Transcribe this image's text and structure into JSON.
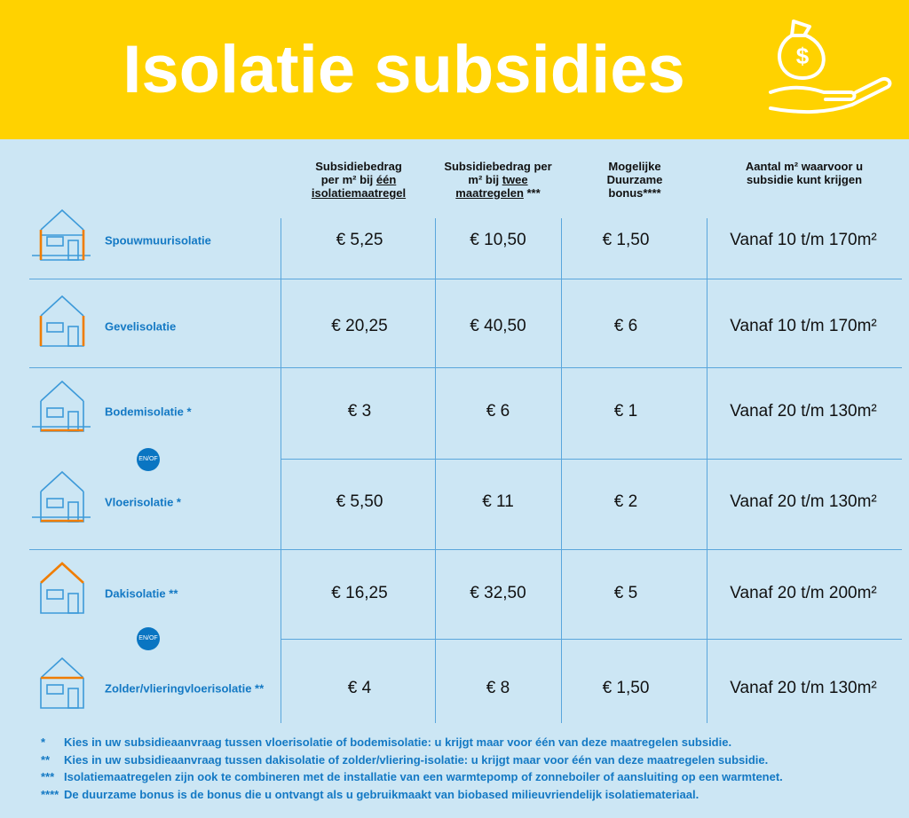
{
  "title": "Isolatie subsidies",
  "icon": "money-bag-hand-icon",
  "colors": {
    "header": "#FFD200",
    "background": "#CCE6F4",
    "accent": "#1479C4",
    "highlight": "#F07D00"
  },
  "columns": [
    {
      "l1": "Subsidiebedrag",
      "l2a": "per m² bij ",
      "l2b": "één",
      "l3": "isolatiemaatregel"
    },
    {
      "l1": "Subsidiebedrag per",
      "l2a": "m² bij ",
      "l2b": "twee",
      "l3": "maatregelen",
      "l3s": " ***"
    },
    {
      "l1": "Mogelijke",
      "l2": "Duurzame",
      "l3": "bonus****"
    },
    {
      "l1": "Aantal m² waarvoor u",
      "l2": "subsidie kunt krijgen"
    }
  ],
  "rows": [
    {
      "label": "Spouwmuurisolatie",
      "highlight": "walls",
      "values": [
        "€ 5,25",
        "€ 10,50",
        "€ 1,50",
        "Vanaf 10 t/m 170m²"
      ]
    },
    {
      "label": "Gevelisolatie",
      "highlight": "walls",
      "values": [
        "€ 20,25",
        "€ 40,50",
        "€ 6",
        "Vanaf 10 t/m 170m²"
      ]
    },
    {
      "label": "Bodemisolatie *",
      "highlight": "floor",
      "values": [
        "€ 3",
        "€ 6",
        "€ 1",
        "Vanaf 20 t/m 130m²"
      ]
    },
    {
      "label": "Vloerisolatie *",
      "highlight": "floor",
      "values": [
        "€ 5,50",
        "€ 11",
        "€ 2",
        "Vanaf 20 t/m 130m²"
      ]
    },
    {
      "label": "Dakisolatie **",
      "highlight": "roof",
      "values": [
        "€ 16,25",
        "€ 32,50",
        "€ 5",
        "Vanaf 20 t/m 200m²"
      ]
    },
    {
      "label": "Zolder/vlieringvloerisolatie **",
      "highlight": "attic",
      "values": [
        "€ 4",
        "€ 8",
        "€ 1,50",
        "Vanaf 20 t/m 130m²"
      ]
    }
  ],
  "enof": "EN/OF",
  "notes": [
    {
      "mark": "*",
      "text": "Kies in uw subsidieaanvraag tussen vloerisolatie of bodemisolatie: u krijgt maar voor één van deze maatregelen subsidie."
    },
    {
      "mark": "**",
      "text": "Kies in uw subsidieaanvraag tussen dakisolatie of zolder/vliering-isolatie: u krijgt maar voor één van deze maatregelen subsidie."
    },
    {
      "mark": "***",
      "text": "Isolatiemaatregelen zijn ook te combineren met de installatie van een warmtepomp of zonneboiler of aansluiting op een warmtenet."
    },
    {
      "mark": "****",
      "text": "De duurzame bonus is de bonus die u ontvangt als u gebruikmaakt van biobased milieuvriendelijk isolatiemateriaal."
    }
  ]
}
